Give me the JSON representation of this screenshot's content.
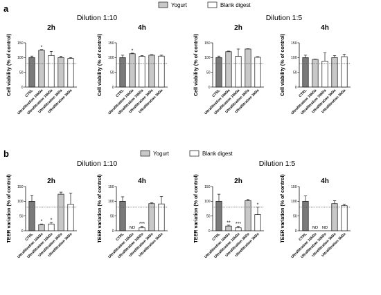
{
  "figure": {
    "colors": {
      "yogurt": "#c8c8c8",
      "blank": "#ffffff",
      "ctrl": "#7a7a7a",
      "edge": "#111111",
      "refline": "#555555"
    },
    "rows": [
      {
        "panel_label": "a",
        "legend": {
          "yogurt": "Yogurt",
          "blank": "Blank digest"
        },
        "dilution_left": "Dilution 1:10",
        "dilution_right": "Dilution 1:5"
      },
      {
        "panel_label": "b",
        "legend": {
          "yogurt": "Yogurt",
          "blank": "Blank digest"
        },
        "dilution_left": "Dilution 1:10",
        "dilution_right": "Dilution 1:5"
      }
    ]
  },
  "chart_data": [
    {
      "type": "bar",
      "row": "a",
      "title": "2h",
      "ylabel": "Cell viability (% of control)",
      "ylim": [
        0,
        150
      ],
      "yticks": [
        0,
        50,
        100,
        150
      ],
      "reference_line": 80,
      "categories": [
        "CTRL",
        "Ultrafiltration 10kDa",
        "Ultrafiltration 10kDa",
        "Ultrafiltration 3kDa",
        "Ultrafiltration 3kDa"
      ],
      "groups": [
        "ctrl",
        "yogurt",
        "blank",
        "yogurt",
        "blank"
      ],
      "values": [
        100,
        125,
        107,
        100,
        97
      ],
      "errors": [
        5,
        2,
        14,
        4,
        3
      ],
      "annotations": [
        "",
        "*",
        "",
        "",
        ""
      ]
    },
    {
      "type": "bar",
      "row": "a",
      "title": "4h",
      "ylabel": "Cell viability (% of control)",
      "ylim": [
        0,
        150
      ],
      "yticks": [
        0,
        50,
        100,
        150
      ],
      "reference_line": 80,
      "categories": [
        "CTRL",
        "Ultrafiltration 10kDa",
        "Ultrafiltration 10kDa",
        "Ultrafiltration 3kDa",
        "Ultrafiltration 3kDa"
      ],
      "groups": [
        "ctrl",
        "yogurt",
        "blank",
        "yogurt",
        "blank"
      ],
      "values": [
        100,
        113,
        104,
        108,
        105
      ],
      "errors": [
        8,
        2,
        3,
        2,
        3
      ],
      "annotations": [
        "",
        "*",
        "",
        "",
        ""
      ]
    },
    {
      "type": "bar",
      "row": "a",
      "title": "2h",
      "ylabel": "Cell viability (% of control)",
      "ylim": [
        0,
        150
      ],
      "yticks": [
        0,
        50,
        100,
        150
      ],
      "reference_line": 80,
      "categories": [
        "CTRL",
        "Ultrafiltration 10kDa",
        "Ultrafiltration 10kDa",
        "Ultrafiltration 3kDa",
        "Ultrafiltration 3kDa"
      ],
      "groups": [
        "ctrl",
        "yogurt",
        "blank",
        "yogurt",
        "blank"
      ],
      "values": [
        100,
        120,
        104,
        129,
        101
      ],
      "errors": [
        5,
        2,
        25,
        1,
        2
      ],
      "annotations": [
        "",
        "",
        "",
        "",
        ""
      ]
    },
    {
      "type": "bar",
      "row": "a",
      "title": "4h",
      "ylabel": "Cell viability (% of control)",
      "ylim": [
        0,
        150
      ],
      "yticks": [
        0,
        50,
        100,
        150
      ],
      "reference_line": 80,
      "categories": [
        "CTRL",
        "Ultrafiltration 10kDa",
        "Ultrafiltration 10kDa",
        "Ultrafiltration 3kDa",
        "Ultrafiltration 3kDa"
      ],
      "groups": [
        "ctrl",
        "yogurt",
        "blank",
        "yogurt",
        "blank"
      ],
      "values": [
        100,
        94,
        88,
        100,
        103
      ],
      "errors": [
        8,
        1,
        28,
        7,
        8
      ],
      "annotations": [
        "",
        "",
        "",
        "",
        ""
      ]
    },
    {
      "type": "bar",
      "row": "b",
      "title": "2h",
      "ylabel": "TEER variation (% of control)",
      "ylim": [
        0,
        150
      ],
      "yticks": [
        0,
        50,
        100,
        150
      ],
      "reference_line": 80,
      "categories": [
        "CTRL",
        "Ultrafiltration 10kDa",
        "Ultrafiltration 10kDa",
        "Ultrafiltration 3kDa",
        "Ultrafiltration 3kDa"
      ],
      "groups": [
        "ctrl",
        "yogurt",
        "blank",
        "yogurt",
        "blank"
      ],
      "values": [
        100,
        21,
        23,
        124,
        90
      ],
      "errors": [
        20,
        2,
        5,
        7,
        38
      ],
      "annotations": [
        "",
        "*",
        "*",
        "",
        ""
      ]
    },
    {
      "type": "bar",
      "row": "b",
      "title": "4h",
      "ylabel": "TEER variation (% of control)",
      "ylim": [
        0,
        150
      ],
      "yticks": [
        0,
        50,
        100,
        150
      ],
      "reference_line": 80,
      "categories": [
        "CTRL",
        "Ultrafiltration 10kDa",
        "Ultrafiltration 10kDa",
        "Ultrafiltration 3kDa",
        "Ultrafiltration 3kDa"
      ],
      "groups": [
        "ctrl",
        "yogurt",
        "blank",
        "yogurt",
        "blank"
      ],
      "values": [
        100,
        0,
        10,
        92,
        91
      ],
      "errors": [
        15,
        0,
        5,
        3,
        25
      ],
      "annotations": [
        "",
        "ND",
        "***",
        "",
        ""
      ]
    },
    {
      "type": "bar",
      "row": "b",
      "title": "2h",
      "ylabel": "TEER variation (% of control)",
      "ylim": [
        0,
        150
      ],
      "yticks": [
        0,
        50,
        100,
        150
      ],
      "reference_line": 80,
      "categories": [
        "CTRL",
        "Ultrafiltration 10kDa",
        "Ultrafiltration 10kDa",
        "Ultrafiltration 3kDa",
        "Ultrafiltration 3kDa"
      ],
      "groups": [
        "ctrl",
        "yogurt",
        "blank",
        "yogurt",
        "blank"
      ],
      "values": [
        100,
        16,
        10,
        102,
        55
      ],
      "errors": [
        24,
        3,
        5,
        4,
        25
      ],
      "annotations": [
        "",
        "**",
        "***",
        "",
        "*"
      ]
    },
    {
      "type": "bar",
      "row": "b",
      "title": "4h",
      "ylabel": "TEER variation (% of control)",
      "ylim": [
        0,
        150
      ],
      "yticks": [
        0,
        50,
        100,
        150
      ],
      "reference_line": 80,
      "categories": [
        "CTRL",
        "Ultrafiltration 10kDa",
        "Ultrafiltration 10kDa",
        "Ultrafiltration 3kDa",
        "Ultrafiltration 3kDa"
      ],
      "groups": [
        "ctrl",
        "yogurt",
        "blank",
        "yogurt",
        "blank"
      ],
      "values": [
        100,
        0,
        0,
        92,
        85
      ],
      "errors": [
        18,
        0,
        0,
        10,
        5
      ],
      "annotations": [
        "",
        "ND",
        "ND",
        "",
        ""
      ]
    }
  ]
}
